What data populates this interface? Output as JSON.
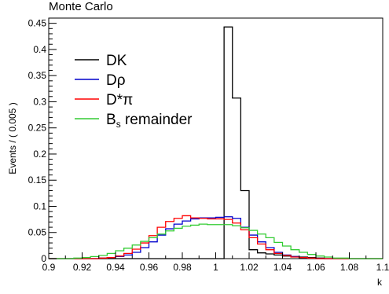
{
  "chart_data": {
    "type": "line",
    "title": "Monte Carlo",
    "xlabel": "k",
    "ylabel": "Events / ( 0.005 )",
    "xlim": [
      0.9,
      1.1
    ],
    "ylim": [
      0,
      0.46
    ],
    "x_ticks": [
      "0.9",
      "0.92",
      "0.94",
      "0.96",
      "0.98",
      "1",
      "1.02",
      "1.04",
      "1.06",
      "1.08",
      "1.1"
    ],
    "y_ticks": [
      "0",
      "0.05",
      "0.1",
      "0.15",
      "0.2",
      "0.25",
      "0.3",
      "0.35",
      "0.4",
      "0.45"
    ],
    "grid": false,
    "legend_position": "upper-left",
    "bin_width": 0.005,
    "bin_start": 0.9,
    "series": [
      {
        "name": "DK",
        "name_main": "DK",
        "name_sub": "",
        "name_rest": "",
        "color": "#000000",
        "values": [
          0,
          0,
          0,
          0,
          0,
          0,
          0,
          0,
          0,
          0,
          0,
          0,
          0,
          0,
          0,
          0,
          0,
          0,
          0,
          0,
          0,
          0.443,
          0.307,
          0.13,
          0.017,
          0.011,
          0.009,
          0.007,
          0.005,
          0.004,
          0.003,
          0.002,
          0.001,
          0,
          0,
          0,
          0,
          0,
          0,
          0
        ]
      },
      {
        "name": "Dρ",
        "name_main": "Dρ",
        "name_sub": "",
        "name_rest": "",
        "color": "#0000cc",
        "values": [
          0,
          0,
          0,
          0,
          0,
          0,
          0.001,
          0.002,
          0.004,
          0.007,
          0.012,
          0.021,
          0.032,
          0.045,
          0.057,
          0.066,
          0.072,
          0.076,
          0.078,
          0.078,
          0.079,
          0.08,
          0.077,
          0.06,
          0.045,
          0.032,
          0.021,
          0.012,
          0.007,
          0.004,
          0.002,
          0.001,
          0,
          0,
          0,
          0,
          0,
          0,
          0,
          0
        ]
      },
      {
        "name": "D*π",
        "name_main": "D*π",
        "name_sub": "",
        "name_rest": "",
        "color": "#ff0000",
        "values": [
          0,
          0,
          0,
          0,
          0,
          0,
          0.001,
          0.002,
          0.005,
          0.01,
          0.018,
          0.03,
          0.044,
          0.06,
          0.071,
          0.077,
          0.082,
          0.078,
          0.077,
          0.076,
          0.076,
          0.075,
          0.068,
          0.055,
          0.04,
          0.028,
          0.017,
          0.01,
          0.006,
          0.003,
          0.002,
          0.001,
          0,
          0,
          0,
          0,
          0,
          0,
          0,
          0
        ]
      },
      {
        "name": "Bs remainder",
        "name_main": "B",
        "name_sub": "s",
        "name_rest": " remainder",
        "color": "#33cc33",
        "values": [
          0,
          0,
          0,
          0.001,
          0.002,
          0.004,
          0.006,
          0.01,
          0.015,
          0.02,
          0.026,
          0.033,
          0.04,
          0.047,
          0.053,
          0.058,
          0.062,
          0.064,
          0.066,
          0.065,
          0.065,
          0.065,
          0.063,
          0.059,
          0.054,
          0.047,
          0.04,
          0.031,
          0.024,
          0.017,
          0.012,
          0.008,
          0.005,
          0.003,
          0.001,
          0.001,
          0,
          0,
          0,
          0
        ]
      }
    ]
  }
}
